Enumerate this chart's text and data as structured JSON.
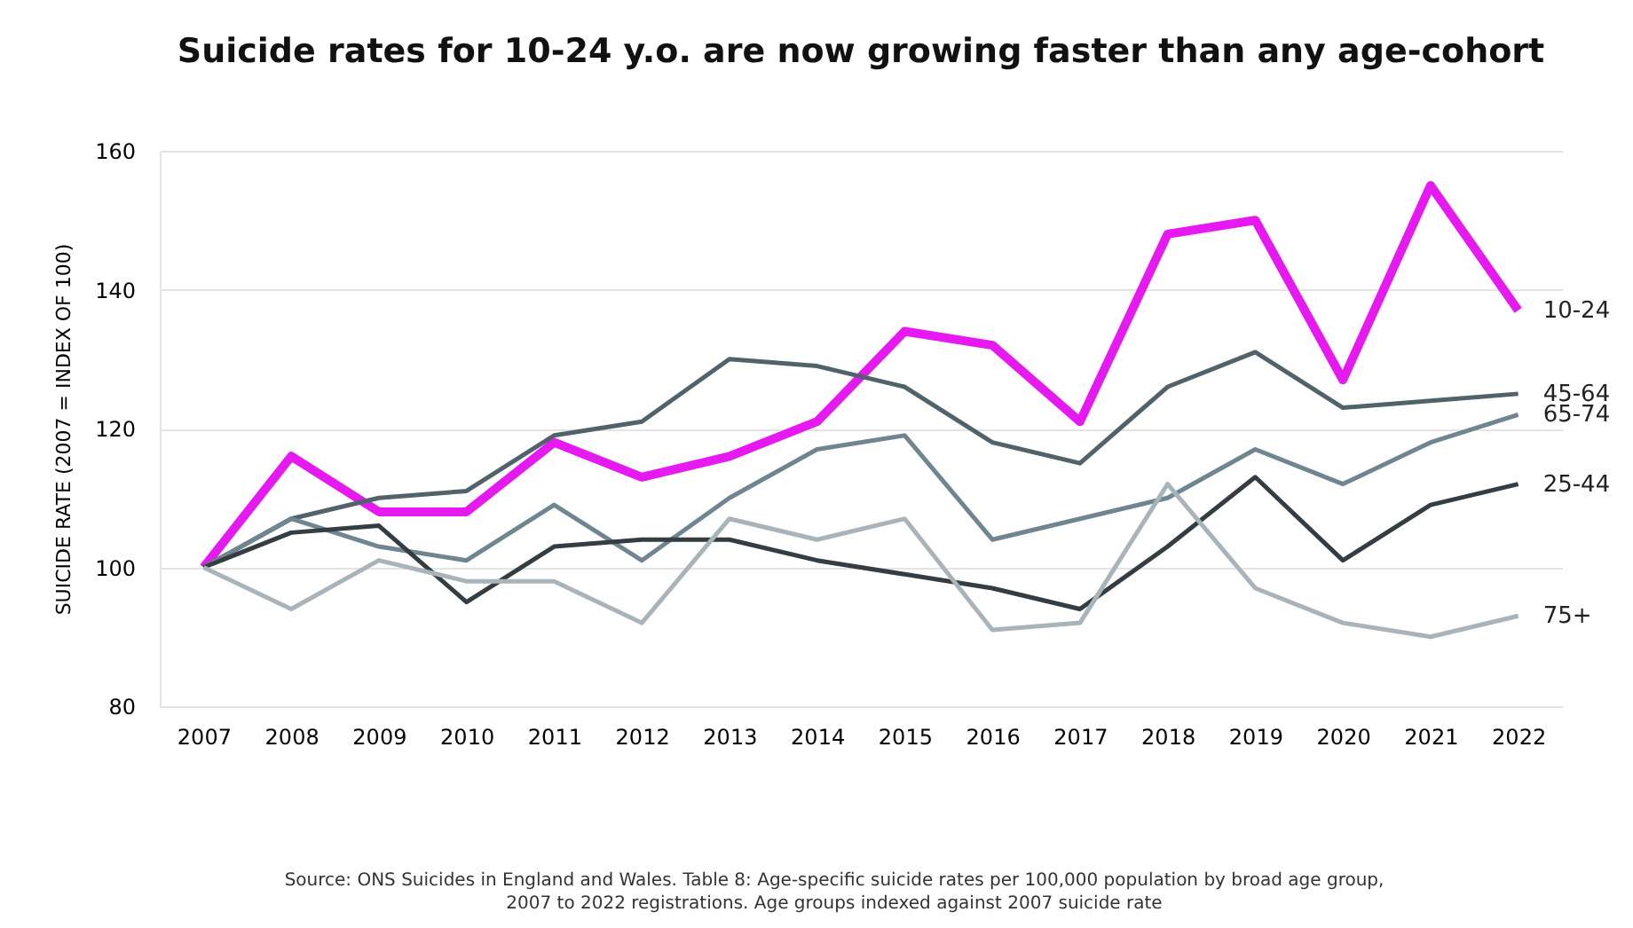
{
  "chart_data": {
    "type": "line",
    "title": "Suicide rates for 10-24 y.o. are now growing faster than any age-cohort",
    "ylabel": "SUICIDE RATE  (2007 = INDEX OF 100)",
    "categories": [
      "2007",
      "2008",
      "2009",
      "2010",
      "2011",
      "2012",
      "2013",
      "2014",
      "2015",
      "2016",
      "2017",
      "2018",
      "2019",
      "2020",
      "2021",
      "2022"
    ],
    "series": [
      {
        "name": "10-24",
        "color": "#e619f0",
        "values": [
          100,
          116,
          108,
          108,
          118,
          113,
          116,
          121,
          134,
          132,
          121,
          148,
          150,
          127,
          155,
          137
        ]
      },
      {
        "name": "45-64",
        "color": "#52626b",
        "values": [
          100,
          107,
          110,
          111,
          119,
          121,
          130,
          129,
          126,
          118,
          115,
          126,
          131,
          123,
          124,
          125
        ]
      },
      {
        "name": "65-74",
        "color": "#6f858f",
        "values": [
          100,
          107,
          103,
          101,
          109,
          101,
          110,
          117,
          119,
          104,
          107,
          110,
          117,
          112,
          118,
          122
        ]
      },
      {
        "name": "25-44",
        "color": "#333d42",
        "values": [
          100,
          105,
          106,
          95,
          103,
          104,
          104,
          101,
          99,
          97,
          94,
          103,
          113,
          101,
          109,
          112
        ]
      },
      {
        "name": "75+",
        "color": "#a9b4ba",
        "values": [
          100,
          94,
          101,
          98,
          98,
          92,
          107,
          104,
          107,
          91,
          92,
          112,
          97,
          92,
          90,
          93
        ]
      }
    ],
    "ylim": [
      80,
      160
    ],
    "yticks": [
      80,
      100,
      120,
      140,
      160
    ],
    "grid": "y",
    "legend": false,
    "annotations": [
      "Source: ONS Suicides in England and Wales. Table 8: Age-specific suicide rates per 100,000 population by broad age group, 2007 to 2022 registrations. Age groups indexed against 2007 suicide rate"
    ]
  }
}
